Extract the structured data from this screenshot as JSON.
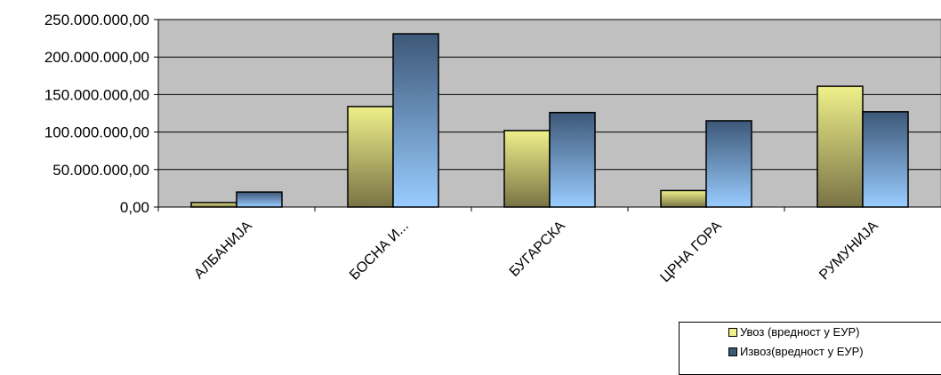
{
  "chart_data": {
    "type": "bar",
    "categories": [
      "АЛБАНИЈА",
      "БОСНА И...",
      "БУГАРСКА",
      "ЦРНА ГОРА",
      "РУМУНИЈА"
    ],
    "series": [
      {
        "name": "Увоз (вредност у ЕУР)",
        "values": [
          6000000,
          134000000,
          102000000,
          22000000,
          161000000
        ],
        "color": "#eef08a",
        "color_dark": "#7a7346"
      },
      {
        "name": "Извоз(вредност у ЕУР)",
        "values": [
          20000000,
          231000000,
          126000000,
          115000000,
          127000000
        ],
        "color": "#99ccff",
        "color_dark": "#3d5878"
      }
    ],
    "ylim": [
      0,
      250000000
    ],
    "yticks": [
      0,
      50000000,
      100000000,
      150000000,
      200000000,
      250000000
    ],
    "ytick_labels": [
      "0,00",
      "50.000.000,00",
      "100.000.000,00",
      "150.000.000,00",
      "200.000.000,00",
      "250.000.000,00"
    ],
    "plot_background": "#c0c0c0",
    "grid": true,
    "legend_position": "bottom-right",
    "xlabel": "",
    "ylabel": "",
    "title": ""
  }
}
